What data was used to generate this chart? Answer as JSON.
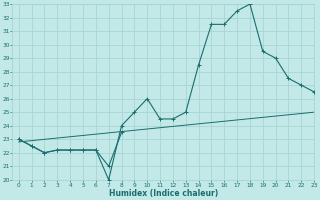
{
  "xlabel": "Humidex (Indice chaleur)",
  "bg_color": "#c2e8e8",
  "grid_color": "#a8d4d4",
  "line_color": "#1a6e6e",
  "x": [
    0,
    1,
    2,
    3,
    4,
    5,
    6,
    7,
    8,
    9,
    10,
    11,
    12,
    13,
    14,
    15,
    16,
    17,
    18,
    19,
    20,
    21,
    22,
    23
  ],
  "line1_y": [
    23.0,
    22.5,
    22.0,
    22.2,
    22.2,
    22.2,
    22.2,
    20.0,
    24.0,
    25.0,
    26.0,
    24.5,
    24.5,
    25.0,
    28.5,
    31.5,
    31.5,
    32.5,
    33.0,
    29.5,
    29.0,
    27.5,
    27.0,
    26.5
  ],
  "line2_y": [
    23.0,
    22.5,
    22.0,
    22.2,
    22.2,
    22.2,
    22.2,
    21.0,
    23.5,
    null,
    null,
    null,
    null,
    null,
    null,
    null,
    null,
    null,
    null,
    null,
    null,
    null,
    null,
    null
  ],
  "line3_x": [
    0,
    23
  ],
  "line3_y": [
    22.8,
    25.0
  ],
  "ylim": [
    20,
    33
  ],
  "xlim": [
    -0.5,
    23
  ],
  "yticks": [
    20,
    21,
    22,
    23,
    24,
    25,
    26,
    27,
    28,
    29,
    30,
    31,
    32,
    33
  ],
  "xticks": [
    0,
    1,
    2,
    3,
    4,
    5,
    6,
    7,
    8,
    9,
    10,
    11,
    12,
    13,
    14,
    15,
    16,
    17,
    18,
    19,
    20,
    21,
    22,
    23
  ]
}
